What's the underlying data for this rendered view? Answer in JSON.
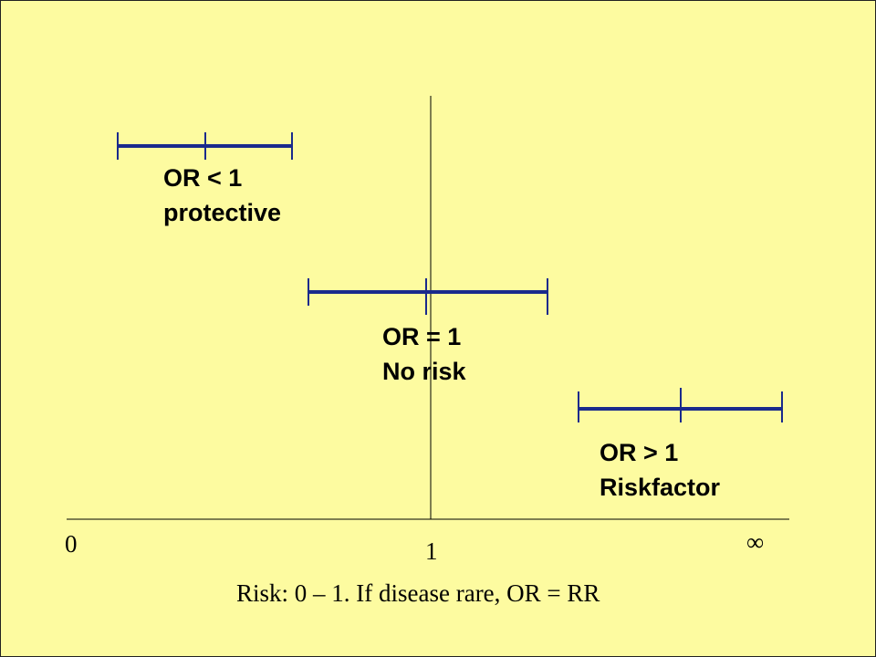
{
  "labels": {
    "or_lt_1_title": "OR < 1",
    "or_lt_1_desc": "protective",
    "or_eq_1_title": "OR = 1",
    "or_eq_1_desc": "No risk",
    "or_gt_1_title": "OR > 1",
    "or_gt_1_desc": "Riskfactor"
  },
  "axis": {
    "left": "0",
    "center": "1",
    "right": "∞"
  },
  "caption": "Risk: 0 – 1. If disease rare, OR = RR",
  "colors": {
    "background": "#fdfba0",
    "interval": "#1a2a8c"
  }
}
